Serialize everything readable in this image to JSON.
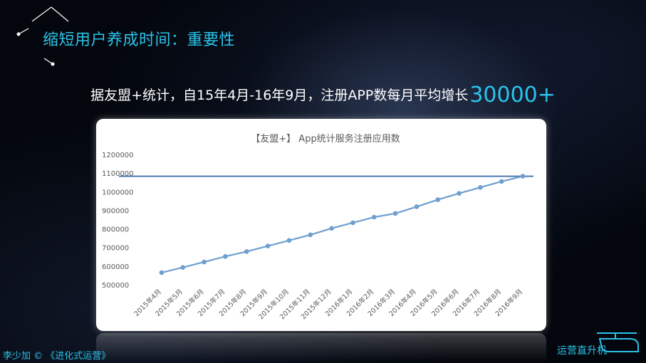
{
  "slide": {
    "title": "缩短用户养成时间：重要性",
    "subtitle_text": "据友盟+统计，自15年4月-16年9月，注册APP数每月平均增长",
    "subtitle_highlight": "30000+"
  },
  "footer": {
    "credit": "李少加 © 《进化式运营》",
    "brand": "运营直升机"
  },
  "colors": {
    "accent": "#2bc3ea",
    "line": "#6f9fcf",
    "refline": "#4a7ab0"
  },
  "chart_data": {
    "type": "line",
    "title": "【友盟+】 App统计服务注册应用数",
    "categories": [
      "2015年4月",
      "2015年5月",
      "2015年6月",
      "2015年7月",
      "2015年8月",
      "2015年9月",
      "2015年10月",
      "2015年11月",
      "2015年12月",
      "2016年1月",
      "2016年2月",
      "2016年3月",
      "2016年4月",
      "2016年5月",
      "2016年6月",
      "2016年7月",
      "2016年8月",
      "2016年9月"
    ],
    "values": [
      565000,
      593000,
      622000,
      652000,
      678000,
      708000,
      738000,
      768000,
      803000,
      833000,
      863000,
      883000,
      919000,
      957000,
      991000,
      1023000,
      1055000,
      1083000
    ],
    "yticks": [
      500000,
      600000,
      700000,
      800000,
      900000,
      1000000,
      1100000,
      1200000
    ],
    "ylim": [
      500000,
      1200000
    ],
    "reference_line": 1083000,
    "grid": false,
    "legend": "none"
  }
}
